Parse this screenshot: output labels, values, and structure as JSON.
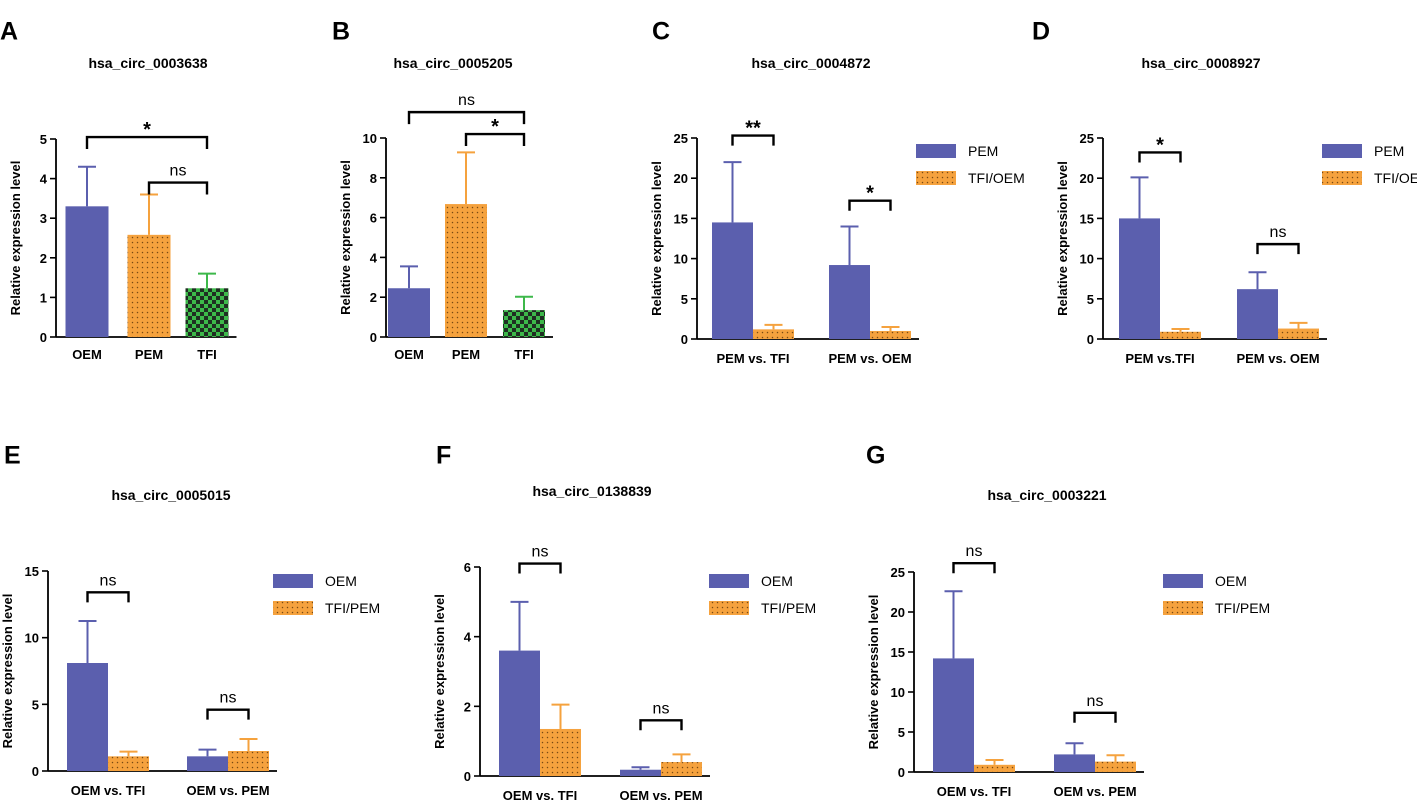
{
  "figure": {
    "ylabel_default": "Relative expression level"
  },
  "chart_data": [
    {
      "panel": "A",
      "type": "bar",
      "title": "hsa_circ_0003638",
      "ylabel": "Relative expression level",
      "ylim": [
        0,
        5
      ],
      "yticks": [
        0,
        1,
        2,
        3,
        4,
        5
      ],
      "categories": [
        "OEM",
        "PEM",
        "TFI"
      ],
      "values": [
        3.3,
        2.58,
        1.23
      ],
      "errors": [
        1.0,
        1.02,
        0.37
      ],
      "colors": [
        "#5B5FAE",
        "#F5A23E",
        "#3DB84A"
      ],
      "patterns": [
        "solid",
        "dots",
        "checker"
      ],
      "brackets": [
        {
          "from": 0,
          "to": 2,
          "label": "*",
          "y": 5.05
        },
        {
          "from": 1,
          "to": 2,
          "label": "ns",
          "y": 3.9
        }
      ]
    },
    {
      "panel": "B",
      "type": "bar",
      "title": "hsa_circ_0005205",
      "ylabel": "Relative expression level",
      "ylim": [
        0,
        10
      ],
      "yticks": [
        0,
        2,
        4,
        6,
        8,
        10
      ],
      "categories": [
        "OEM",
        "PEM",
        "TFI"
      ],
      "values": [
        2.45,
        6.68,
        1.35
      ],
      "errors": [
        1.1,
        2.6,
        0.67
      ],
      "colors": [
        "#5B5FAE",
        "#F5A23E",
        "#3DB84A"
      ],
      "patterns": [
        "solid",
        "dots",
        "checker"
      ],
      "brackets": [
        {
          "from": 0,
          "to": 2,
          "label": "ns",
          "y": 11.3
        },
        {
          "from": 1,
          "to": 2,
          "label": "*",
          "y": 10.2
        }
      ]
    },
    {
      "panel": "C",
      "type": "bar",
      "title": "hsa_circ_0004872",
      "ylabel": "Relative expression level",
      "ylim": [
        0,
        25
      ],
      "yticks": [
        0,
        5,
        10,
        15,
        20,
        25
      ],
      "categories": [
        "PEM vs. TFI",
        "PEM vs. OEM"
      ],
      "series": [
        {
          "name": "PEM",
          "values": [
            14.5,
            9.2
          ],
          "errors": [
            7.5,
            4.8
          ],
          "color": "#5B5FAE",
          "pattern": "solid"
        },
        {
          "name": "TFI/OEM",
          "values": [
            1.2,
            1.0
          ],
          "errors": [
            0.55,
            0.5
          ],
          "color": "#F5A23E",
          "pattern": "dots"
        }
      ],
      "brackets": [
        {
          "group": 0,
          "label": "**",
          "y": 25.3
        },
        {
          "group": 1,
          "label": "*",
          "y": 17.2
        }
      ]
    },
    {
      "panel": "D",
      "type": "bar",
      "title": "hsa_circ_0008927",
      "ylabel": "Relative expression level",
      "ylim": [
        0,
        25
      ],
      "yticks": [
        0,
        5,
        10,
        15,
        20,
        25
      ],
      "categories": [
        "PEM vs.TFI",
        "PEM vs. OEM"
      ],
      "series": [
        {
          "name": "PEM",
          "values": [
            15.0,
            6.2
          ],
          "errors": [
            5.1,
            2.1
          ],
          "color": "#5B5FAE",
          "pattern": "solid"
        },
        {
          "name": "TFI/OEM",
          "values": [
            0.9,
            1.3
          ],
          "errors": [
            0.35,
            0.7
          ],
          "color": "#F5A23E",
          "pattern": "dots"
        }
      ],
      "brackets": [
        {
          "group": 0,
          "label": "*",
          "y": 23.2
        },
        {
          "group": 1,
          "label": "ns",
          "y": 11.8
        }
      ]
    },
    {
      "panel": "E",
      "type": "bar",
      "title": "hsa_circ_0005015",
      "ylabel": "Relative expression level",
      "ylim": [
        0,
        15
      ],
      "yticks": [
        0,
        5,
        10,
        15
      ],
      "categories": [
        "OEM vs. TFI",
        "OEM vs. PEM"
      ],
      "series": [
        {
          "name": "OEM",
          "values": [
            8.1,
            1.1
          ],
          "errors": [
            3.15,
            0.5
          ],
          "color": "#5B5FAE",
          "pattern": "solid"
        },
        {
          "name": "TFI/PEM",
          "values": [
            1.1,
            1.5
          ],
          "errors": [
            0.35,
            0.9
          ],
          "color": "#F5A23E",
          "pattern": "dots"
        }
      ],
      "brackets": [
        {
          "group": 0,
          "label": "ns",
          "y": 13.4
        },
        {
          "group": 1,
          "label": "ns",
          "y": 4.6
        }
      ]
    },
    {
      "panel": "F",
      "type": "bar",
      "title": "hsa_circ_0138839",
      "ylabel": "Relative expression level",
      "ylim": [
        0,
        6
      ],
      "yticks": [
        0,
        2,
        4,
        6
      ],
      "categories": [
        "OEM vs. TFI",
        "OEM vs. PEM"
      ],
      "series": [
        {
          "name": "OEM",
          "values": [
            3.6,
            0.18
          ],
          "errors": [
            1.4,
            0.07
          ],
          "color": "#5B5FAE",
          "pattern": "solid"
        },
        {
          "name": "TFI/PEM",
          "values": [
            1.35,
            0.4
          ],
          "errors": [
            0.7,
            0.22
          ],
          "color": "#F5A23E",
          "pattern": "dots"
        }
      ],
      "brackets": [
        {
          "group": 0,
          "label": "ns",
          "y": 6.1
        },
        {
          "group": 1,
          "label": "ns",
          "y": 1.6
        }
      ]
    },
    {
      "panel": "G",
      "type": "bar",
      "title": "hsa_circ_0003221",
      "ylabel": "Relative expression level",
      "ylim": [
        0,
        25
      ],
      "yticks": [
        0,
        5,
        10,
        15,
        20,
        25
      ],
      "categories": [
        "OEM vs. TFI",
        "OEM vs. PEM"
      ],
      "series": [
        {
          "name": "OEM",
          "values": [
            14.2,
            2.2
          ],
          "errors": [
            8.4,
            1.4
          ],
          "color": "#5B5FAE",
          "pattern": "solid"
        },
        {
          "name": "TFI/PEM",
          "values": [
            0.9,
            1.3
          ],
          "errors": [
            0.6,
            0.8
          ],
          "color": "#F5A23E",
          "pattern": "dots"
        }
      ],
      "brackets": [
        {
          "group": 0,
          "label": "ns",
          "y": 26.1
        },
        {
          "group": 1,
          "label": "ns",
          "y": 7.4
        }
      ]
    }
  ]
}
